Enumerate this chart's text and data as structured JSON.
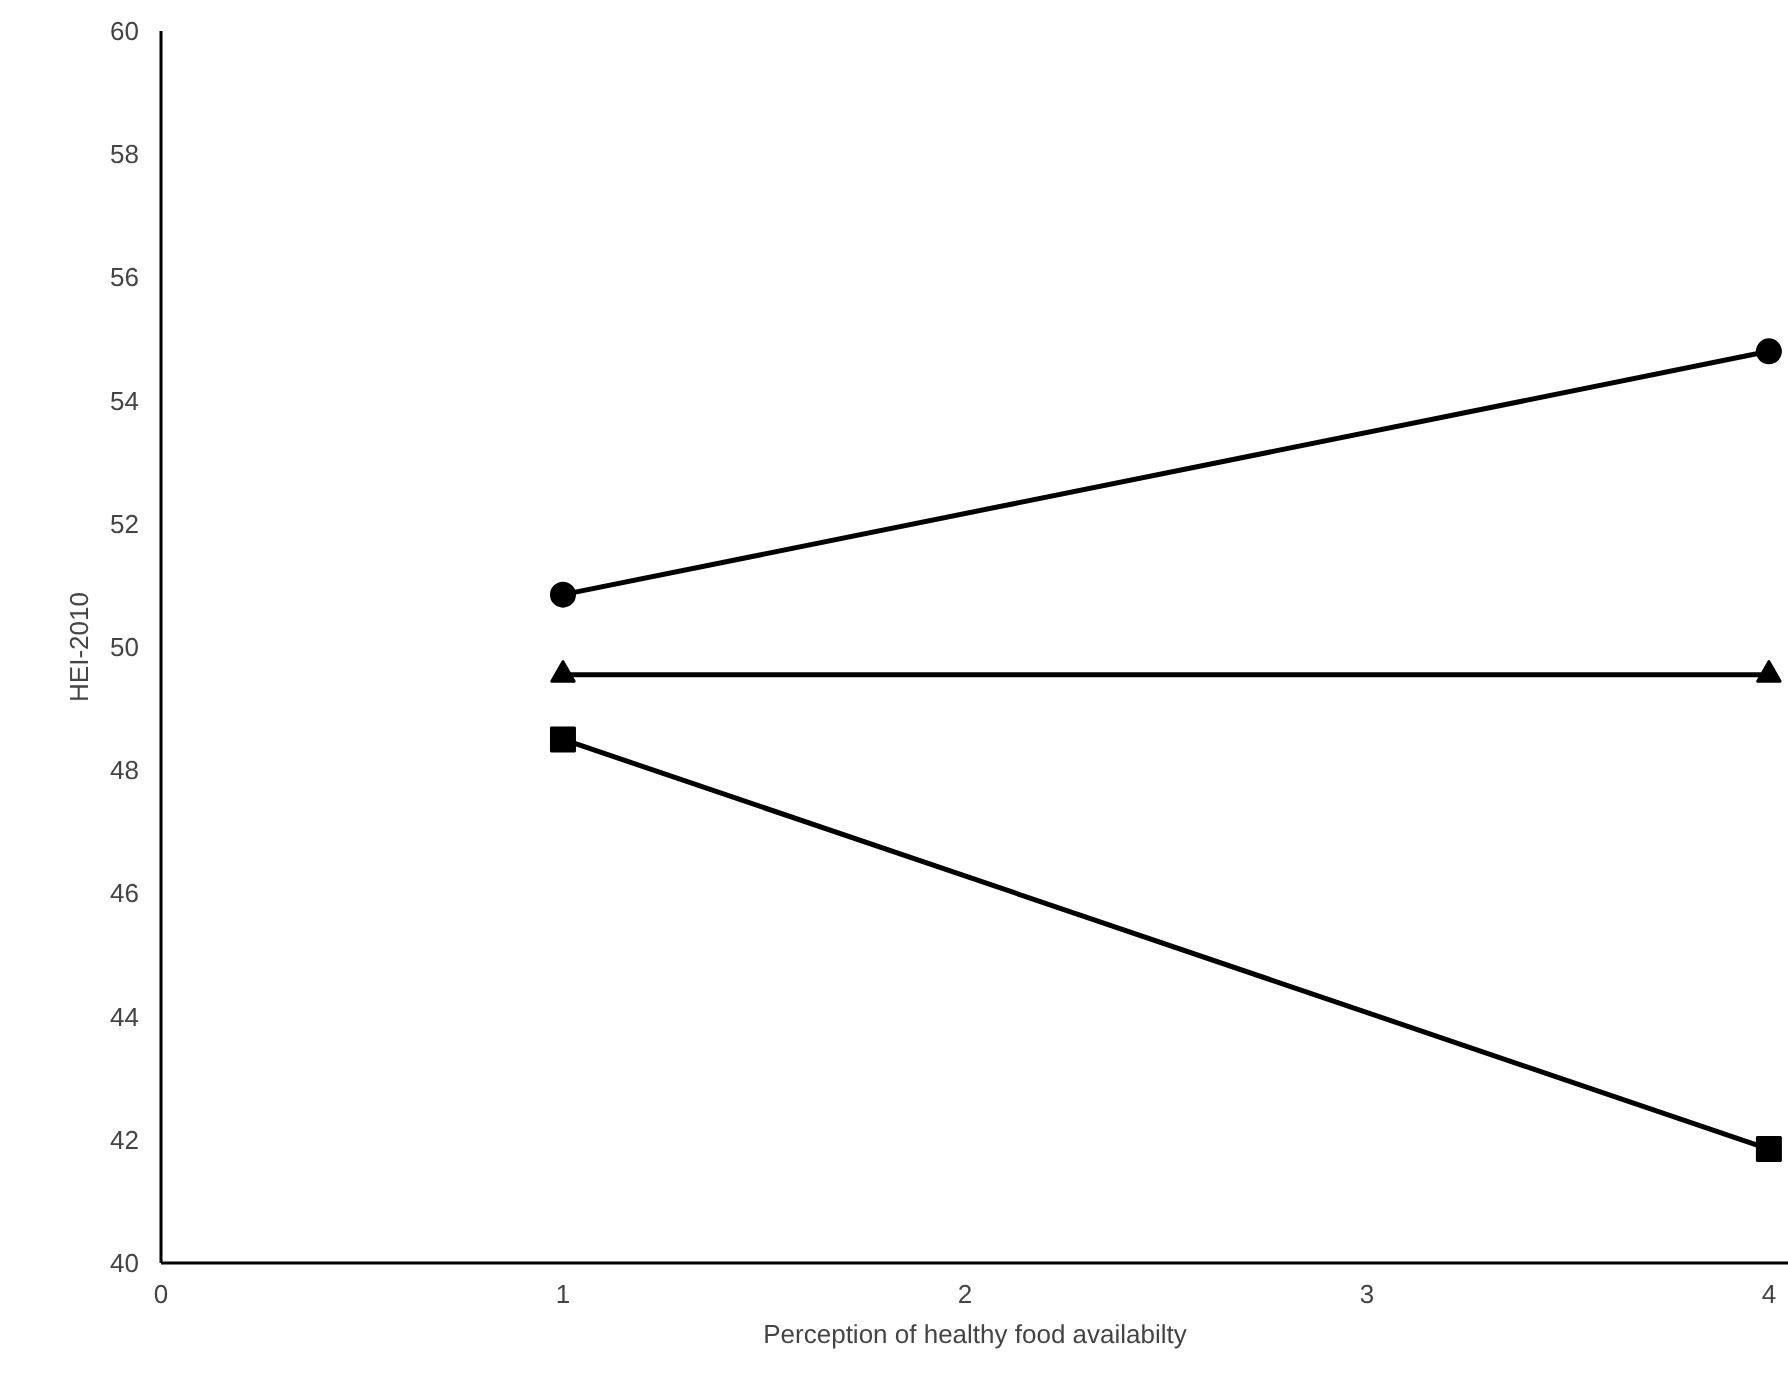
{
  "chart_data": {
    "type": "line",
    "xlabel": "Perception of healthy food availabilty",
    "ylabel": "HEI-2010",
    "x": [
      1,
      4
    ],
    "series": [
      {
        "color": "#000000",
        "marker": "circle",
        "values": [
          50.85,
          54.8
        ]
      },
      {
        "color": "#000000",
        "marker": "triangle",
        "values": [
          49.55,
          49.55
        ]
      },
      {
        "color": "#000000",
        "marker": "square",
        "values": [
          48.5,
          41.85
        ]
      }
    ],
    "xlim": [
      0,
      4.05
    ],
    "ylim": [
      40,
      60
    ],
    "xticks": [
      0,
      1,
      2,
      3,
      4
    ],
    "yticks": [
      40,
      42,
      44,
      46,
      48,
      50,
      52,
      54,
      56,
      58,
      60
    ],
    "grid": false
  }
}
